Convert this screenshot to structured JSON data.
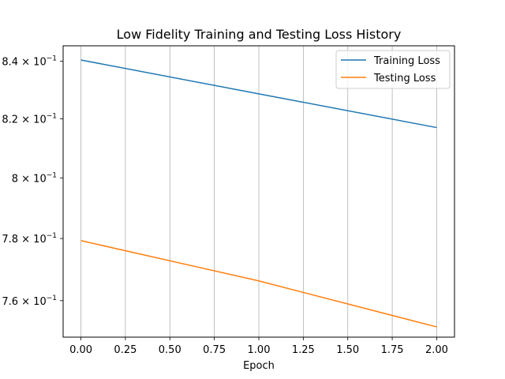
{
  "chart_data": {
    "type": "line",
    "title": "Low Fidelity Training and Testing Loss History",
    "xlabel": "Epoch",
    "ylabel": "",
    "yscale": "log",
    "xlim": [
      -0.1,
      2.1
    ],
    "ylim": [
      0.7485,
      0.8454
    ],
    "x_ticks": [
      0.0,
      0.25,
      0.5,
      0.75,
      1.0,
      1.25,
      1.5,
      1.75,
      2.0
    ],
    "x_tick_labels": [
      "0.00",
      "0.25",
      "0.50",
      "0.75",
      "1.00",
      "1.25",
      "1.50",
      "1.75",
      "2.00"
    ],
    "y_ticks": [
      0.76,
      0.78,
      0.8,
      0.82,
      0.84
    ],
    "y_tick_mantissas": [
      "7.6",
      "7.8",
      "8",
      "8.2",
      "8.4"
    ],
    "y_tick_base": "10",
    "y_tick_exponent": "−1",
    "grid": "x-major",
    "legend": "top-right",
    "x": [
      0,
      1,
      2
    ],
    "series": [
      {
        "name": "Training Loss",
        "color": "#1f77b4",
        "values": [
          0.8404,
          0.8286,
          0.817
        ]
      },
      {
        "name": "Testing Loss",
        "color": "#ff7f0e",
        "values": [
          0.7793,
          0.7663,
          0.7517
        ]
      }
    ]
  }
}
